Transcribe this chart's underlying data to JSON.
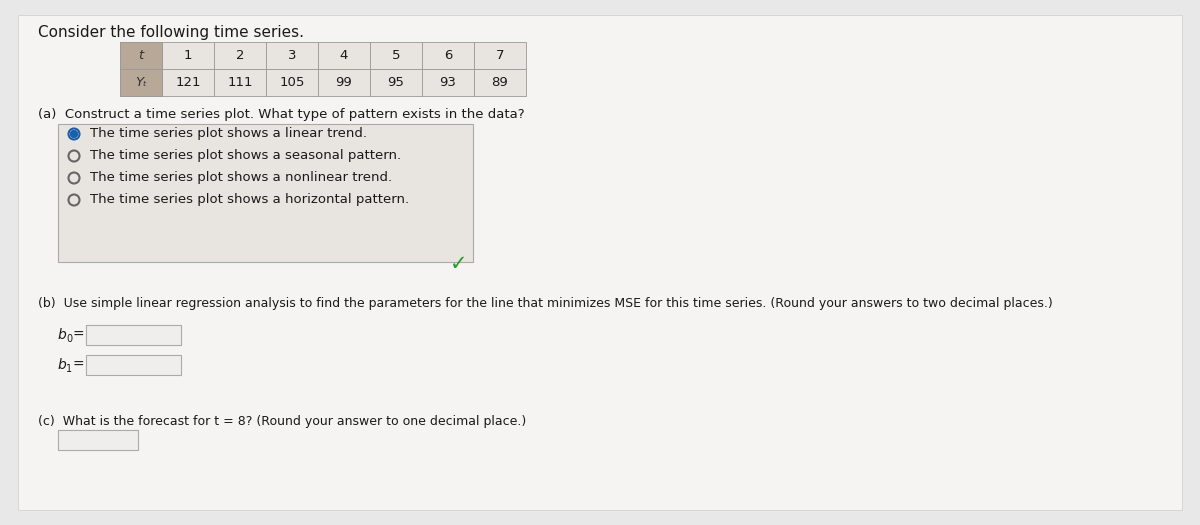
{
  "title": "Consider the following time series.",
  "table_t": [
    "1",
    "2",
    "3",
    "4",
    "5",
    "6",
    "7"
  ],
  "table_yt": [
    "121",
    "111",
    "105",
    "99",
    "95",
    "93",
    "89"
  ],
  "part_a_label": "(a)  Construct a time series plot. What type of pattern exists in the data?",
  "options": [
    "The time series plot shows a linear trend.",
    "The time series plot shows a seasonal pattern.",
    "The time series plot shows a nonlinear trend.",
    "The time series plot shows a horizontal pattern."
  ],
  "selected_option": 0,
  "checkmark": "✓",
  "part_b_label": "(b)  Use simple linear regression analysis to find the parameters for the line that minimizes MSE for this time series. (Round your answers to two decimal places.)",
  "b0_label": "b",
  "b1_label": "b",
  "part_c_label": "(c)  What is the forecast for t = 8? (Round your answer to one decimal place.)",
  "bg_color": "#e8e8e8",
  "page_bg": "#f0f0f0",
  "table_label_bg": "#b8a898",
  "table_header_bg": "#e8e4e0",
  "table_data_bg": "#f5f3f0",
  "table_border": "#999999",
  "options_box_bg": "#e8e4e0",
  "options_box_border": "#aaaaaa",
  "radio_selected_color": "#1a5fa8",
  "radio_unselected_color": "#666666",
  "checkmark_color": "#2a9a2a",
  "input_box_bg": "#f0eeec",
  "input_box_border": "#aaaaaa",
  "text_color": "#1a1a1a",
  "label_text_color": "#ffffff",
  "font_size_title": 11,
  "font_size_body": 9,
  "font_size_table": 9.5,
  "font_size_option": 9.5
}
